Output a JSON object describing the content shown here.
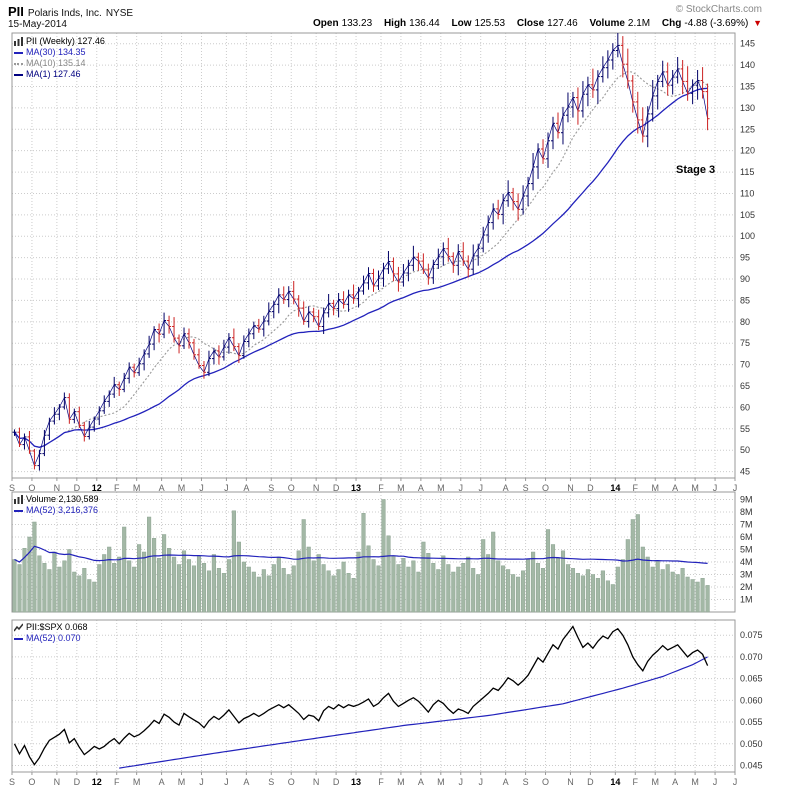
{
  "header": {
    "symbol": "PII",
    "company": "Polaris Inds, Inc.",
    "exchange": "NYSE",
    "date": "15-May-2014",
    "copyright": "© StockCharts.com",
    "change_arrow": "▼",
    "quote": [
      {
        "label": "Open",
        "value": "133.23"
      },
      {
        "label": "High",
        "value": "136.44"
      },
      {
        "label": "Low",
        "value": "125.53"
      },
      {
        "label": "Close",
        "value": "127.46"
      },
      {
        "label": "Volume",
        "value": "2.1M"
      },
      {
        "label": "Chg",
        "value": "-4.88 (-3.69%)"
      }
    ]
  },
  "colors": {
    "up_bar": "#000066",
    "down_bar": "#CC2222",
    "ma30": "#2222BB",
    "ma10": "#999999",
    "ma1": "#000080",
    "volume_bar": "#A3B8A6",
    "volume_bar_edge": "#8CA391",
    "volume_ma": "#2222BB",
    "ratio_line": "#000000",
    "ratio_ma": "#2222BB",
    "grid": "#CCCCCC",
    "border": "#999999",
    "axis_text": "#333333",
    "month_text": "#666666",
    "year_text": "#000000"
  },
  "timeline": {
    "total_weeks": 145,
    "months": [
      {
        "l": "S",
        "w": 4
      },
      {
        "l": "O",
        "w": 5
      },
      {
        "l": "N",
        "w": 4
      },
      {
        "l": "D",
        "w": 4
      },
      {
        "l": "12",
        "w": 4,
        "b": 1
      },
      {
        "l": "F",
        "w": 4
      },
      {
        "l": "M",
        "w": 5
      },
      {
        "l": "A",
        "w": 4
      },
      {
        "l": "M",
        "w": 4
      },
      {
        "l": "J",
        "w": 5
      },
      {
        "l": "J",
        "w": 4
      },
      {
        "l": "A",
        "w": 5
      },
      {
        "l": "S",
        "w": 4
      },
      {
        "l": "O",
        "w": 5
      },
      {
        "l": "N",
        "w": 4
      },
      {
        "l": "D",
        "w": 4
      },
      {
        "l": "13",
        "w": 5,
        "b": 1
      },
      {
        "l": "F",
        "w": 4
      },
      {
        "l": "M",
        "w": 4
      },
      {
        "l": "A",
        "w": 4
      },
      {
        "l": "M",
        "w": 4
      },
      {
        "l": "J",
        "w": 4
      },
      {
        "l": "J",
        "w": 5
      },
      {
        "l": "A",
        "w": 4
      },
      {
        "l": "S",
        "w": 4
      },
      {
        "l": "O",
        "w": 5
      },
      {
        "l": "N",
        "w": 4
      },
      {
        "l": "D",
        "w": 5
      },
      {
        "l": "14",
        "w": 4,
        "b": 1
      },
      {
        "l": "F",
        "w": 4
      },
      {
        "l": "M",
        "w": 4
      },
      {
        "l": "A",
        "w": 4
      },
      {
        "l": "M",
        "w": 4
      },
      {
        "l": "J",
        "w": 4
      },
      {
        "l": "J",
        "w": 0
      }
    ]
  },
  "chart_data": [
    {
      "type": "ohlc",
      "title": "PII Weekly price",
      "legend": {
        "main": "PII (Weekly) 127.46",
        "ma30": "MA(30) 134.35",
        "ma10": "MA(10) 135.14",
        "ma1": "MA(1) 127.46"
      },
      "ylim": [
        43.5,
        147.5
      ],
      "yticks": [
        45,
        50,
        55,
        60,
        65,
        70,
        75,
        80,
        85,
        90,
        95,
        100,
        105,
        110,
        115,
        120,
        125,
        130,
        135,
        140,
        145
      ],
      "closes": [
        54.2,
        51.3,
        53.1,
        49.8,
        46.4,
        49.2,
        53.5,
        56.8,
        58.4,
        60.1,
        62.3,
        57.2,
        59.0,
        55.8,
        53.2,
        55.4,
        57.3,
        59.2,
        61.4,
        63.1,
        65.3,
        64.2,
        66.8,
        69.4,
        68.1,
        70.2,
        72.5,
        74.8,
        78.2,
        77.1,
        80.3,
        78.9,
        76.2,
        74.4,
        77.2,
        75.1,
        72.3,
        69.8,
        68.2,
        71.4,
        73.2,
        71.8,
        74.1,
        76.3,
        74.2,
        72.1,
        75.4,
        77.2,
        79.1,
        78.3,
        80.2,
        82.4,
        84.1,
        86.3,
        85.2,
        87.1,
        85.3,
        83.2,
        80.1,
        82.3,
        81.2,
        78.9,
        82.1,
        84.3,
        83.1,
        85.2,
        84.1,
        86.3,
        85.4,
        87.2,
        89.1,
        91.3,
        88.4,
        90.2,
        92.4,
        94.1,
        91.2,
        89.3,
        91.4,
        93.2,
        95.1,
        94.2,
        92.1,
        90.3,
        93.4,
        95.2,
        97.1,
        95.3,
        93.2,
        96.4,
        94.2,
        92.3,
        95.4,
        97.2,
        100.3,
        103.2,
        106.4,
        105.1,
        108.3,
        110.2,
        108.1,
        106.3,
        109.4,
        112.3,
        116.2,
        120.4,
        118.1,
        122.3,
        126.4,
        124.2,
        128.3,
        130.2,
        132.4,
        129.3,
        133.2,
        135.4,
        134.2,
        137.3,
        139.4,
        141.2,
        143.4,
        144.6,
        140.2,
        136.3,
        131.4,
        127.2,
        123.4,
        128.6,
        132.8,
        136.2,
        138.4,
        135.3,
        137.2,
        139.1,
        136.2,
        133.4,
        135.3,
        136.4,
        133.8,
        127.46
      ],
      "hi_pct": [
        0.012,
        0.02,
        0.015,
        0.026,
        0.01,
        0.018,
        0.023,
        0.014,
        0.028,
        0.011,
        0.019,
        0.016
      ],
      "lo_pct": [
        0.016,
        0.011,
        0.022,
        0.013,
        0.019,
        0.025,
        0.012,
        0.021,
        0.014,
        0.024,
        0.01,
        0.018
      ],
      "ma_windows": {
        "ma30": 30,
        "ma10": 10
      },
      "annotation": {
        "text": "Stage 3",
        "week": 138,
        "price": 113
      }
    },
    {
      "type": "bar",
      "title": "Weekly volume",
      "legend": {
        "main": "Volume 2,130,589",
        "ma": "MA(52) 3,216,376"
      },
      "ylim_millions": [
        0,
        9.6
      ],
      "yticks_millions": [
        1,
        2,
        3,
        4,
        5,
        6,
        7,
        8,
        9
      ],
      "ma_window": 52,
      "values_millions": [
        4.2,
        3.8,
        5.1,
        6.0,
        7.2,
        4.5,
        3.9,
        3.4,
        4.8,
        3.6,
        4.1,
        5.0,
        3.2,
        2.9,
        3.5,
        2.6,
        2.4,
        3.8,
        4.6,
        5.2,
        3.9,
        4.4,
        6.8,
        4.1,
        3.6,
        5.4,
        4.8,
        7.6,
        5.9,
        4.3,
        6.2,
        5.1,
        4.4,
        3.8,
        4.9,
        4.2,
        3.7,
        4.5,
        3.9,
        3.3,
        4.6,
        3.5,
        3.1,
        4.2,
        8.1,
        5.6,
        4.0,
        3.6,
        3.2,
        2.8,
        3.4,
        2.9,
        3.8,
        4.4,
        3.5,
        3.0,
        3.7,
        4.9,
        7.4,
        5.2,
        4.1,
        4.6,
        3.8,
        3.3,
        2.9,
        3.4,
        4.0,
        3.1,
        2.7,
        4.8,
        7.9,
        5.3,
        4.2,
        3.7,
        9.0,
        6.1,
        4.5,
        3.8,
        4.3,
        3.6,
        4.1,
        3.2,
        5.6,
        4.7,
        3.9,
        3.4,
        4.5,
        3.8,
        3.2,
        3.6,
        3.9,
        4.4,
        3.5,
        3.0,
        5.8,
        4.6,
        6.4,
        4.1,
        3.7,
        3.4,
        3.0,
        2.8,
        3.3,
        4.2,
        4.8,
        3.9,
        3.5,
        6.6,
        5.4,
        4.3,
        4.9,
        3.8,
        3.5,
        3.1,
        2.9,
        3.4,
        3.0,
        2.7,
        3.3,
        2.5,
        2.2,
        3.6,
        4.2,
        5.8,
        7.4,
        7.8,
        5.2,
        4.4,
        3.6,
        4.1,
        3.4,
        3.8,
        3.2,
        3.0,
        3.5,
        2.8,
        2.6,
        2.4,
        2.7,
        2.13
      ]
    },
    {
      "type": "line",
      "title": "PII:$SPX ratio",
      "legend": {
        "main": "PII:$SPX 0.068",
        "ma": "MA(52) 0.070"
      },
      "ylim": [
        0.0435,
        0.0785
      ],
      "yticks": [
        0.045,
        0.05,
        0.055,
        0.06,
        0.065,
        0.07,
        0.075
      ],
      "values": [
        0.05,
        0.0477,
        0.0496,
        0.047,
        0.0452,
        0.0468,
        0.049,
        0.0508,
        0.0515,
        0.0522,
        0.0533,
        0.0502,
        0.0512,
        0.0492,
        0.0475,
        0.0484,
        0.0494,
        0.0488,
        0.0494,
        0.0504,
        0.0512,
        0.05,
        0.0513,
        0.0524,
        0.0516,
        0.0521,
        0.053,
        0.0541,
        0.0554,
        0.0547,
        0.0568,
        0.0561,
        0.055,
        0.0543,
        0.057,
        0.0562,
        0.0555,
        0.0548,
        0.0537,
        0.0553,
        0.0563,
        0.0556,
        0.0566,
        0.0578,
        0.0563,
        0.0548,
        0.0558,
        0.0563,
        0.057,
        0.0563,
        0.057,
        0.0578,
        0.0584,
        0.059,
        0.0583,
        0.059,
        0.058,
        0.057,
        0.0556,
        0.0566,
        0.0563,
        0.0553,
        0.0576,
        0.0586,
        0.058,
        0.059,
        0.0583,
        0.059,
        0.0586,
        0.059,
        0.0596,
        0.0603,
        0.0586,
        0.0593,
        0.0606,
        0.0616,
        0.0598,
        0.0586,
        0.0593,
        0.06,
        0.0606,
        0.0598,
        0.0586,
        0.0573,
        0.059,
        0.06,
        0.0593,
        0.058,
        0.057,
        0.058,
        0.0576,
        0.057,
        0.0586,
        0.0596,
        0.0606,
        0.0616,
        0.0628,
        0.0623,
        0.0636,
        0.0652,
        0.0645,
        0.0635,
        0.0645,
        0.0658,
        0.0678,
        0.0698,
        0.0688,
        0.0708,
        0.0728,
        0.0718,
        0.074,
        0.0755,
        0.077,
        0.0745,
        0.0722,
        0.0732,
        0.072,
        0.0736,
        0.0748,
        0.0742,
        0.0758,
        0.0765,
        0.075,
        0.0728,
        0.07,
        0.0682,
        0.0668,
        0.069,
        0.0704,
        0.0714,
        0.0726,
        0.0716,
        0.0722,
        0.0728,
        0.0714,
        0.07,
        0.071,
        0.0716,
        0.0706,
        0.068
      ],
      "ma52_points": [
        [
          21,
          0.0444
        ],
        [
          40,
          0.0478
        ],
        [
          60,
          0.0512
        ],
        [
          78,
          0.0542
        ],
        [
          95,
          0.0565
        ],
        [
          110,
          0.0592
        ],
        [
          122,
          0.0628
        ],
        [
          130,
          0.0655
        ],
        [
          136,
          0.0682
        ],
        [
          139,
          0.07
        ]
      ]
    }
  ]
}
